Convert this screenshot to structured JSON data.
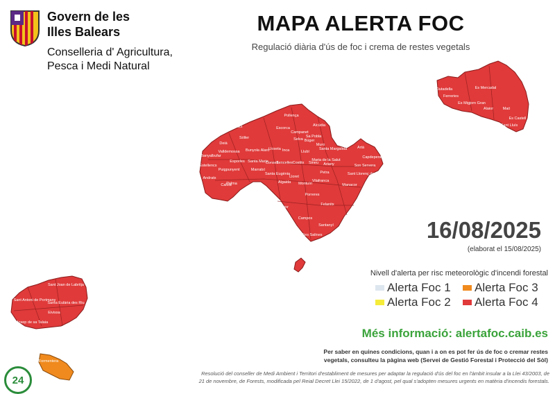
{
  "header": {
    "logo_icon": "balearic-coat-of-arms-icon",
    "gov_line1": "Govern de les",
    "gov_line2": "Illes Balears",
    "cons_line1": "Conselleria d' Agricultura,",
    "cons_line2": "Pesca i Medi Natural"
  },
  "title": "MAPA ALERTA FOC",
  "subtitle": "Regulació diària d'ús de foc i crema de restes vegetals",
  "date": "16/08/2025",
  "elaborat": "(elaborat el 15/08/2025)",
  "legend": {
    "title": "Nivell d'alerta per risc meteorològic d'incendi forestal",
    "items": [
      {
        "label": "Alerta Foc 1",
        "color": "#dde6ee"
      },
      {
        "label": "Alerta Foc 2",
        "color": "#f5ec3a"
      },
      {
        "label": "Alerta Foc 3",
        "color": "#f08a1e"
      },
      {
        "label": "Alerta Foc 4",
        "color": "#e03a3a"
      }
    ]
  },
  "more_info": "Més informació: alertafoc.caib.es",
  "info_text": {
    "line1": "Per saber en quines condicions, quan i a on es pot fer ús de foc o cremar restes",
    "line2": "vegetals, consulteu la pàgina web (Servei de Gestió Forestal i Protecció del Sòl)"
  },
  "legal": {
    "line1": "Resolució del conseller de Medi Ambient i Territori d'establiment de mesures per adaptar la regulació d'ús del foc en l'àmbit insular a la Llei 43/2003, de",
    "line2": "21 de novembre, de Forests, modificada pel Reial Decret Llei 15/2022, de 1 d'agost, pel qual s'adopten mesures urgents en matèria d'incendis forestals."
  },
  "badge": "24",
  "map": {
    "alert_color": "#e03a3a",
    "orange_color": "#f08a1e",
    "mallorca_labels": [
      "Pollença",
      "Escorca",
      "Alcúdia",
      "Campanet",
      "Sa Pobla",
      "Muro",
      "Selva",
      "Búger",
      "Santa Margalida",
      "Artà",
      "Capdepera",
      "Fornalutx",
      "Sóller",
      "Deià",
      "Valldemossa",
      "Bunyola",
      "Alaró",
      "Lloseta",
      "Inca",
      "Llubí",
      "Maria de la Salut",
      "Sant Llorenç des Cardassar",
      "Son Servera",
      "Banyalbufar",
      "Esporles",
      "Santa Maria",
      "Consell",
      "Sencelles",
      "Costitx",
      "Sineu",
      "Ariany",
      "Petra",
      "Estellencs",
      "Puigpunyent",
      "Marratxí",
      "Santa Eugènia",
      "Lloret",
      "Montuïri",
      "Vilafranca",
      "Manacor",
      "Palma",
      "Algaida",
      "Porreres",
      "Andratx",
      "Calvià",
      "Llucmajor",
      "Felanitx",
      "Campos",
      "Santanyí",
      "Ses Salines"
    ],
    "menorca_labels": [
      "Ciutadella",
      "Ferreries",
      "Es Mercadal",
      "Es Migjorn Gran",
      "Alaior",
      "Maó",
      "Es Castell",
      "Sant Lluís"
    ],
    "ibiza_labels": [
      "Sant Joan de Labritja",
      "Sant Antoni de Portmany",
      "Santa Eulària des Riu",
      "Eivissa",
      "Sant Josep de sa Talaia",
      "Formentera"
    ]
  }
}
